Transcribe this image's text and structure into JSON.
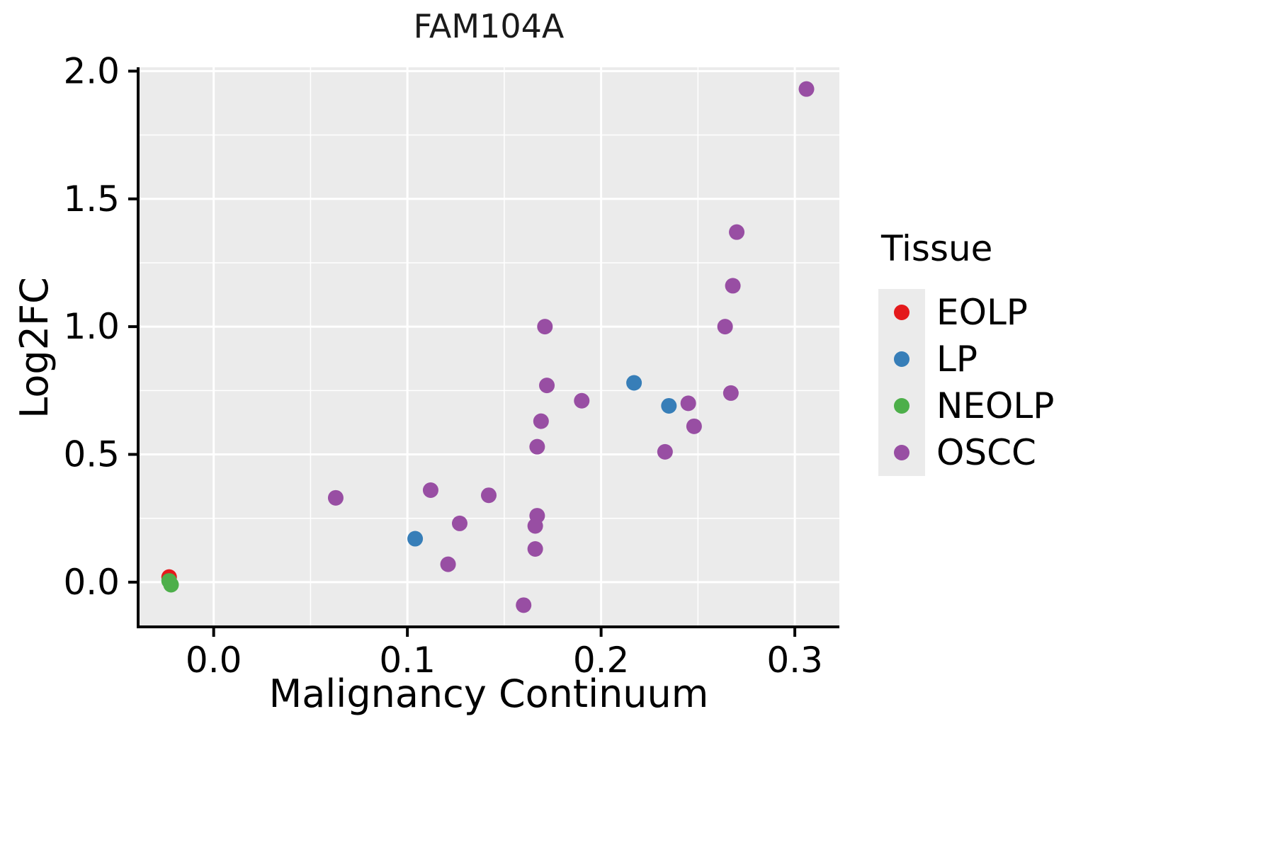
{
  "chart_data": {
    "type": "scatter",
    "title": "FAM104A",
    "xlabel": "Malignancy Continuum",
    "ylabel": "Log2FC",
    "legend_title": "Tissue",
    "legend_position": "right",
    "grid": true,
    "panel_background": "#EBEBEB",
    "gridline_color": "#FFFFFF",
    "axis_color": "#000000",
    "xlim": [
      -0.039,
      0.323
    ],
    "ylim": [
      -0.175,
      2.015
    ],
    "x_ticks": [
      0.0,
      0.1,
      0.2,
      0.3
    ],
    "x_tick_labels": [
      "0.0",
      "0.1",
      "0.2",
      "0.3"
    ],
    "x_minor_ticks": [
      0.05,
      0.15,
      0.25
    ],
    "y_ticks": [
      0.0,
      0.5,
      1.0,
      1.5,
      2.0
    ],
    "y_tick_labels": [
      "0.0",
      "0.5",
      "1.0",
      "1.5",
      "2.0"
    ],
    "y_minor_ticks": [
      0.25,
      0.75,
      1.25,
      1.75
    ],
    "point_radius": 11,
    "series": [
      {
        "name": "EOLP",
        "color": "#E41A1C",
        "points": [
          [
            -0.023,
            0.02
          ]
        ]
      },
      {
        "name": "LP",
        "color": "#377EB8",
        "points": [
          [
            0.104,
            0.17
          ],
          [
            0.217,
            0.78
          ],
          [
            0.235,
            0.69
          ]
        ]
      },
      {
        "name": "NEOLP",
        "color": "#4DAF4A",
        "points": [
          [
            -0.023,
            0.005
          ],
          [
            -0.022,
            -0.01
          ]
        ]
      },
      {
        "name": "OSCC",
        "color": "#984EA3",
        "points": [
          [
            0.306,
            1.93
          ],
          [
            0.27,
            1.37
          ],
          [
            0.268,
            1.16
          ],
          [
            0.264,
            1.0
          ],
          [
            0.267,
            0.74
          ],
          [
            0.245,
            0.7
          ],
          [
            0.248,
            0.61
          ],
          [
            0.233,
            0.51
          ],
          [
            0.19,
            0.71
          ],
          [
            0.171,
            1.0
          ],
          [
            0.172,
            0.77
          ],
          [
            0.169,
            0.63
          ],
          [
            0.167,
            0.53
          ],
          [
            0.167,
            0.26
          ],
          [
            0.166,
            0.22
          ],
          [
            0.166,
            0.13
          ],
          [
            0.16,
            -0.09
          ],
          [
            0.142,
            0.34
          ],
          [
            0.127,
            0.23
          ],
          [
            0.121,
            0.07
          ],
          [
            0.112,
            0.36
          ],
          [
            0.063,
            0.33
          ]
        ]
      }
    ]
  }
}
